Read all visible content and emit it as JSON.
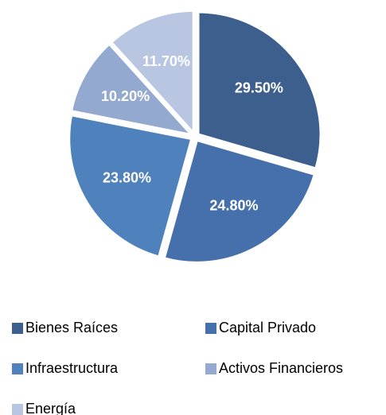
{
  "chart_data": {
    "type": "pie",
    "categories": [
      "Bienes Raíces",
      "Capital Privado",
      "Infraestructura",
      "Activos Financieros",
      "Energía"
    ],
    "values": [
      29.5,
      24.8,
      23.8,
      10.2,
      11.7
    ],
    "value_labels": [
      "29.50%",
      "24.80%",
      "23.80%",
      "10.20%",
      "11.70%"
    ],
    "colors": [
      "#3d5f8e",
      "#4570ac",
      "#4f81bd",
      "#94a9d0",
      "#b8c6e1"
    ]
  }
}
